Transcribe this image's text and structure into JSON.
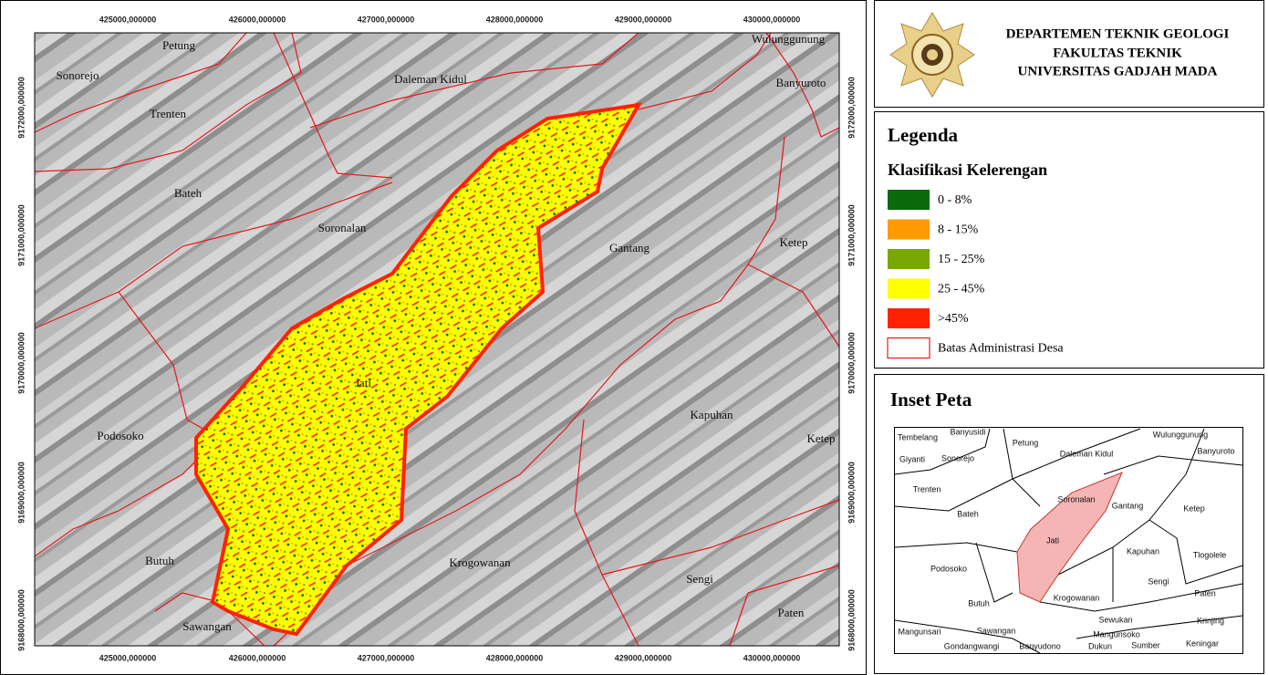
{
  "header": {
    "lines": [
      "DEPARTEMEN TEKNIK GEOLOGI",
      "FAKULTAS TEKNIK",
      "UNIVERSITAS GADJAH MADA"
    ]
  },
  "map": {
    "x_labels": [
      "425000,000000",
      "426000,000000",
      "427000,000000",
      "428000,000000",
      "429000,000000",
      "430000,000000"
    ],
    "y_labels": [
      "9172000,000000",
      "9171000,000000",
      "9170000,000000",
      "9169000,000000",
      "9168000,000000"
    ],
    "villages": [
      "Petung",
      "Sonorejo",
      "Trenten",
      "Bateh",
      "Soronalan",
      "Daleman Kidul",
      "Wulunggunung",
      "Banyuroto",
      "Gantang",
      "Ketep",
      "Kapuhan",
      "Ketep",
      "Podosoko",
      "Butuh",
      "Krogowanan",
      "Sengi",
      "Paten",
      "Sawangan",
      "Jati"
    ]
  },
  "legend": {
    "title": "Legenda",
    "subtitle": "Klasifikasi Kelerengan",
    "items": [
      {
        "label": "0 - 8%",
        "color": "#0b6b0b"
      },
      {
        "label": "8 - 15%",
        "color": "#ff9a00"
      },
      {
        "label": "15 - 25%",
        "color": "#78a800"
      },
      {
        "label": "25 - 45%",
        "color": "#ffff00"
      },
      {
        "label": ">45%",
        "color": "#ff2200"
      },
      {
        "label": "Batas Administrasi Desa",
        "color": "#e31a1c",
        "outline": true
      }
    ]
  },
  "inset": {
    "title": "Inset Peta",
    "villages": [
      "Tembelang",
      "Banyusidi",
      "Giyanti",
      "Sonorejo",
      "Petung",
      "Daleman Kidul",
      "Wulunggunung",
      "Banyuroto",
      "Trenten",
      "Soronalan",
      "Gantang",
      "Bateh",
      "Ketep",
      "Jati",
      "Kapuhan",
      "Tlogolele",
      "Podosoko",
      "Sengi",
      "Butuh",
      "Krogowanan",
      "Paten",
      "Sewukan",
      "Krinjing",
      "Mangunsari",
      "Sawangan",
      "Mangunsoko",
      "Gondangwangi",
      "Banyudono",
      "Dukun",
      "Sumber",
      "Keningar"
    ]
  }
}
